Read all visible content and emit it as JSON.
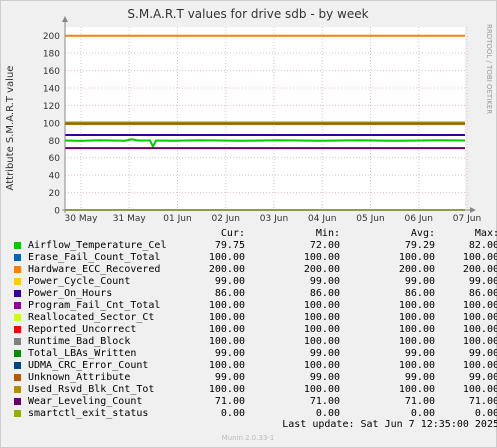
{
  "title": "S.M.A.R.T values for drive sdb - by week",
  "side_label": "RRDTOOL / TOBI OETIKER",
  "footer": "Munin 2.0.33-1",
  "last_update": "Last update:  Sat Jun  7 12:35:00 2025",
  "legend_headers": {
    "cur": "Cur:",
    "min": "Min:",
    "avg": "Avg:",
    "max": "Max:"
  },
  "chart_data": {
    "type": "line",
    "title": "S.M.A.R.T values for drive sdb - by week",
    "ylabel": "Attribute S.M.A.R.T value",
    "xlabel": "",
    "ylim": [
      0,
      210
    ],
    "yticks": [
      "0",
      "20",
      "40",
      "60",
      "80",
      "100",
      "120",
      "140",
      "160",
      "180",
      "200"
    ],
    "yvals": [
      0,
      20,
      40,
      60,
      80,
      100,
      120,
      140,
      160,
      180,
      200
    ],
    "xticks": [
      "30 May",
      "31 May",
      "01 Jun",
      "02 Jun",
      "03 Jun",
      "04 Jun",
      "05 Jun",
      "06 Jun",
      "07 Jun"
    ],
    "grid": true,
    "series": [
      {
        "name": "Airflow_Temperature_Cel",
        "color": "#00cc00",
        "cur": "79.75",
        "min": "72.00",
        "avg": "79.29",
        "max": "82.00",
        "value": 79.75
      },
      {
        "name": "Erase_Fail_Count_Total",
        "color": "#0066b3",
        "cur": "100.00",
        "min": "100.00",
        "avg": "100.00",
        "max": "100.00",
        "value": 100
      },
      {
        "name": "Hardware_ECC_Recovered",
        "color": "#ff8000",
        "cur": "200.00",
        "min": "200.00",
        "avg": "200.00",
        "max": "200.00",
        "value": 200
      },
      {
        "name": "Power_Cycle_Count",
        "color": "#ffcc00",
        "cur": "99.00",
        "min": "99.00",
        "avg": "99.00",
        "max": "99.00",
        "value": 99
      },
      {
        "name": "Power_On_Hours",
        "color": "#330099",
        "cur": "86.00",
        "min": "86.00",
        "avg": "86.00",
        "max": "86.00",
        "value": 86
      },
      {
        "name": "Program_Fail_Cnt_Total",
        "color": "#990099",
        "cur": "100.00",
        "min": "100.00",
        "avg": "100.00",
        "max": "100.00",
        "value": 100
      },
      {
        "name": "Reallocated_Sector_Ct",
        "color": "#ccff00",
        "cur": "100.00",
        "min": "100.00",
        "avg": "100.00",
        "max": "100.00",
        "value": 100
      },
      {
        "name": "Reported_Uncorrect",
        "color": "#ff0000",
        "cur": "100.00",
        "min": "100.00",
        "avg": "100.00",
        "max": "100.00",
        "value": 100
      },
      {
        "name": "Runtime_Bad_Block",
        "color": "#808080",
        "cur": "100.00",
        "min": "100.00",
        "avg": "100.00",
        "max": "100.00",
        "value": 100
      },
      {
        "name": "Total_LBAs_Written",
        "color": "#008f00",
        "cur": "99.00",
        "min": "99.00",
        "avg": "99.00",
        "max": "99.00",
        "value": 99
      },
      {
        "name": "UDMA_CRC_Error_Count",
        "color": "#00487d",
        "cur": "100.00",
        "min": "100.00",
        "avg": "100.00",
        "max": "100.00",
        "value": 100
      },
      {
        "name": "Unknown_Attribute",
        "color": "#b35a00",
        "cur": "99.00",
        "min": "99.00",
        "avg": "99.00",
        "max": "99.00",
        "value": 99
      },
      {
        "name": "Used_Rsvd_Blk_Cnt_Tot",
        "color": "#b38f00",
        "cur": "100.00",
        "min": "100.00",
        "avg": "100.00",
        "max": "100.00",
        "value": 100
      },
      {
        "name": "Wear_Leveling_Count",
        "color": "#6b006b",
        "cur": "71.00",
        "min": "71.00",
        "avg": "71.00",
        "max": "71.00",
        "value": 71
      },
      {
        "name": "smartctl_exit_status",
        "color": "#8fb300",
        "cur": "0.00",
        "min": "0.00",
        "avg": "0.00",
        "max": "0.00",
        "value": 0
      }
    ]
  }
}
